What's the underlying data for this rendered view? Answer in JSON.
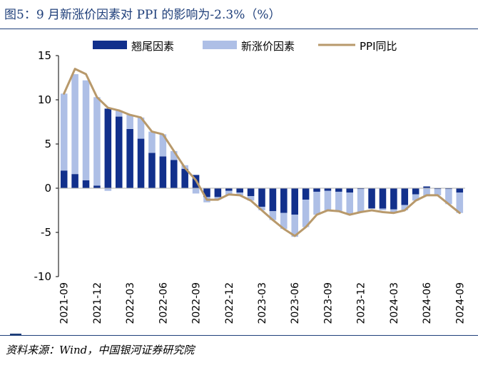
{
  "title": "图5：9 月新涨价因素对 PPI 的影响为-2.3%（%）",
  "source": "资料来源：Wind，中国银河证券研究院",
  "colors": {
    "carryover": "#12308c",
    "new": "#aebfe6",
    "ppi": "#b8996b",
    "axis": "#000000",
    "title": "#1f3f7a"
  },
  "chart_data": {
    "type": "bar",
    "stacked": true,
    "title": "图5：9 月新涨价因素对 PPI 的影响为-2.3%（%）",
    "legend_position": "top",
    "ylim": [
      -10,
      15
    ],
    "yticks": [
      -10,
      -5,
      0,
      5,
      10,
      15
    ],
    "grid": false,
    "categories": [
      "2021-09",
      "2021-10",
      "2021-11",
      "2021-12",
      "2022-01",
      "2022-02",
      "2022-03",
      "2022-04",
      "2022-05",
      "2022-06",
      "2022-07",
      "2022-08",
      "2022-09",
      "2022-10",
      "2022-11",
      "2022-12",
      "2023-01",
      "2023-02",
      "2023-03",
      "2023-04",
      "2023-05",
      "2023-06",
      "2023-07",
      "2023-08",
      "2023-09",
      "2023-10",
      "2023-11",
      "2023-12",
      "2024-01",
      "2024-02",
      "2024-03",
      "2024-04",
      "2024-05",
      "2024-06",
      "2024-07",
      "2024-08",
      "2024-09"
    ],
    "xtick_labels": [
      "2021-09",
      "2021-12",
      "2022-03",
      "2022-06",
      "2022-09",
      "2022-12",
      "2023-03",
      "2023-06",
      "2023-09",
      "2023-12",
      "2024-03",
      "2024-06",
      "2024-09"
    ],
    "series": [
      {
        "name": "翘尾因素",
        "kind": "bar",
        "values": [
          2.0,
          1.6,
          0.9,
          0.3,
          9.0,
          8.1,
          6.7,
          5.6,
          4.0,
          3.6,
          3.2,
          2.2,
          1.5,
          -1.0,
          -1.0,
          -0.3,
          -0.5,
          -0.9,
          -2.1,
          -2.6,
          -2.8,
          -3.0,
          -1.3,
          -0.4,
          -0.3,
          -0.4,
          -0.5,
          -0.1,
          -2.3,
          -2.3,
          -2.4,
          -1.9,
          -0.7,
          0.2,
          -0.1,
          -0.1,
          -0.5
        ]
      },
      {
        "name": "新涨价因素",
        "kind": "bar",
        "values": [
          8.7,
          11.3,
          11.3,
          10.0,
          -0.3,
          0.7,
          1.6,
          2.4,
          2.4,
          2.5,
          1.0,
          0.4,
          -0.6,
          -0.6,
          -0.3,
          -0.5,
          -0.3,
          -0.5,
          -0.4,
          -1.0,
          -1.8,
          -2.5,
          -3.1,
          -2.6,
          -2.2,
          -2.2,
          -2.5,
          -2.6,
          0.0,
          -0.2,
          -0.4,
          -0.6,
          -0.7,
          -0.9,
          -0.7,
          -1.7,
          -2.3
        ]
      },
      {
        "name": "PPI同比",
        "kind": "line",
        "values": [
          10.7,
          13.5,
          12.9,
          10.3,
          9.1,
          8.8,
          8.3,
          8.0,
          6.4,
          6.1,
          4.2,
          2.3,
          0.9,
          -1.3,
          -1.3,
          -0.7,
          -0.8,
          -1.4,
          -2.5,
          -3.6,
          -4.6,
          -5.4,
          -4.4,
          -3.0,
          -2.5,
          -2.6,
          -3.0,
          -2.7,
          -2.5,
          -2.7,
          -2.8,
          -2.5,
          -1.4,
          -0.8,
          -0.8,
          -1.8,
          -2.8
        ]
      }
    ]
  }
}
